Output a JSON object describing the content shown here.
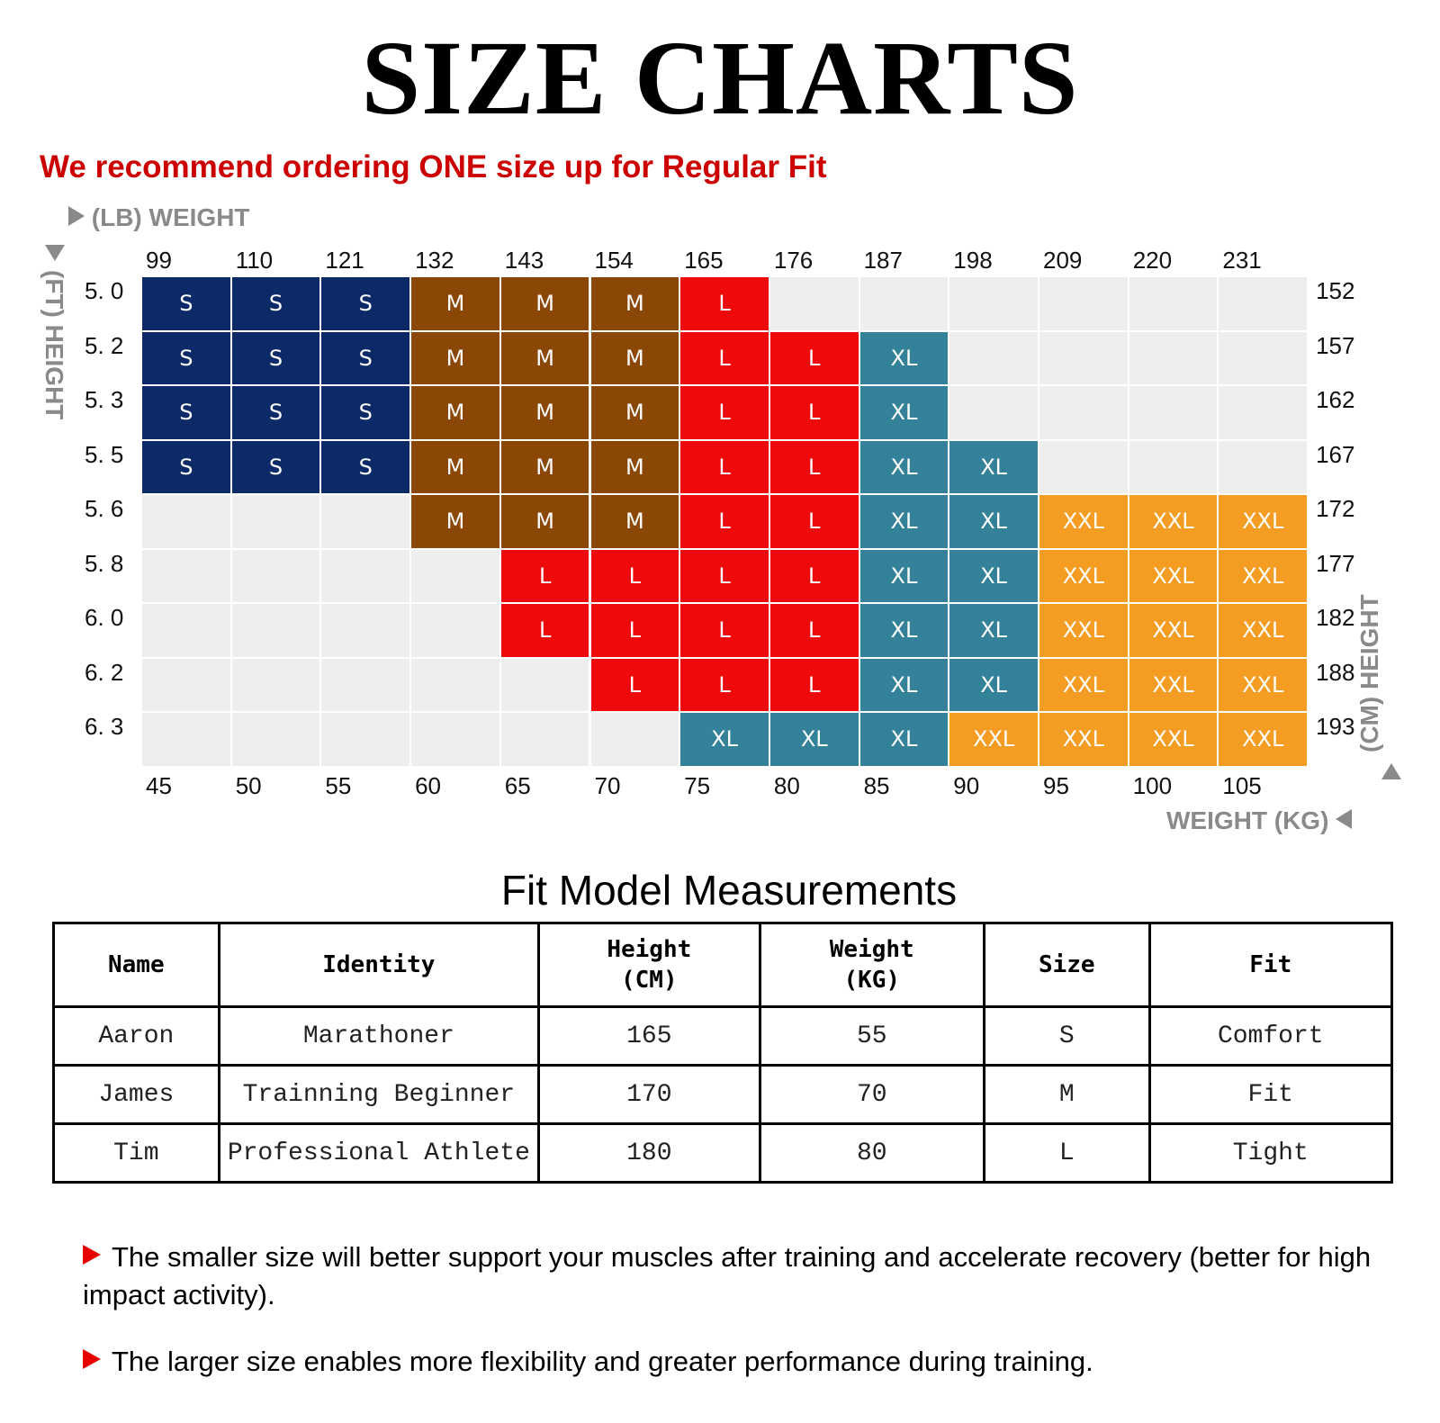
{
  "title": "SIZE CHARTS",
  "recommendation": "We recommend ordering ONE size up for Regular Fit",
  "colors": {
    "S": "#0c2a67",
    "M": "#8b4706",
    "L": "#ee0a0a",
    "XL": "#34829a",
    "XXL": "#f59d22",
    "empty": "#eeeeee",
    "recommendation_text": "#cc0000"
  },
  "chart_data": {
    "type": "heatmap",
    "top_axis_label": "(LB) WEIGHT",
    "bottom_axis_label": "WEIGHT (KG)",
    "left_axis_label": "(FT) HEIGHT",
    "right_axis_label": "(CM) HEIGHT",
    "weight_lb": [
      "99",
      "110",
      "121",
      "132",
      "143",
      "154",
      "165",
      "176",
      "187",
      "198",
      "209",
      "220",
      "231"
    ],
    "weight_kg": [
      "45",
      "50",
      "55",
      "60",
      "65",
      "70",
      "75",
      "80",
      "85",
      "90",
      "95",
      "100",
      "105"
    ],
    "height_ft": [
      "5. 0",
      "5. 2",
      "5. 3",
      "5. 5",
      "5. 6",
      "5. 8",
      "6. 0",
      "6. 2",
      "6. 3"
    ],
    "height_cm": [
      "152",
      "157",
      "162",
      "167",
      "172",
      "177",
      "182",
      "188",
      "193"
    ],
    "sizes": [
      [
        "S",
        "S",
        "S",
        "M",
        "M",
        "M",
        "L",
        "",
        "",
        "",
        "",
        "",
        ""
      ],
      [
        "S",
        "S",
        "S",
        "M",
        "M",
        "M",
        "L",
        "L",
        "XL",
        "",
        "",
        "",
        ""
      ],
      [
        "S",
        "S",
        "S",
        "M",
        "M",
        "M",
        "L",
        "L",
        "XL",
        "",
        "",
        "",
        ""
      ],
      [
        "S",
        "S",
        "S",
        "M",
        "M",
        "M",
        "L",
        "L",
        "XL",
        "XL",
        "",
        "",
        ""
      ],
      [
        "",
        "",
        "",
        "M",
        "M",
        "M",
        "L",
        "L",
        "XL",
        "XL",
        "XXL",
        "XXL",
        "XXL"
      ],
      [
        "",
        "",
        "",
        "",
        "L",
        "L",
        "L",
        "L",
        "XL",
        "XL",
        "XXL",
        "XXL",
        "XXL"
      ],
      [
        "",
        "",
        "",
        "",
        "L",
        "L",
        "L",
        "L",
        "XL",
        "XL",
        "XXL",
        "XXL",
        "XXL"
      ],
      [
        "",
        "",
        "",
        "",
        "",
        "L",
        "L",
        "L",
        "XL",
        "XL",
        "XXL",
        "XXL",
        "XXL"
      ],
      [
        "",
        "",
        "",
        "",
        "",
        "",
        "XL",
        "XL",
        "XL",
        "XXL",
        "XXL",
        "XXL",
        "XXL"
      ]
    ]
  },
  "fit_model": {
    "title": "Fit Model Measurements",
    "headers": {
      "name": "Name",
      "identity": "Identity",
      "height_1": "Height",
      "height_2": "(CM)",
      "weight_1": "Weight",
      "weight_2": "(KG)",
      "size": "Size",
      "fit": "Fit"
    },
    "rows": [
      {
        "name": "Aaron",
        "identity": "Marathoner",
        "height": "165",
        "weight": "55",
        "size": "S",
        "fit": "Comfort"
      },
      {
        "name": "James",
        "identity": "Trainning Beginner",
        "height": "170",
        "weight": "70",
        "size": "M",
        "fit": "Fit"
      },
      {
        "name": "Tim",
        "identity": "Professional Athlete",
        "height": "180",
        "weight": "80",
        "size": "L",
        "fit": "Tight"
      }
    ]
  },
  "notes": [
    "The smaller size will better support your muscles after training and accelerate recovery (better for high impact activity).",
    "The larger size enables more flexibility and greater performance during training."
  ]
}
